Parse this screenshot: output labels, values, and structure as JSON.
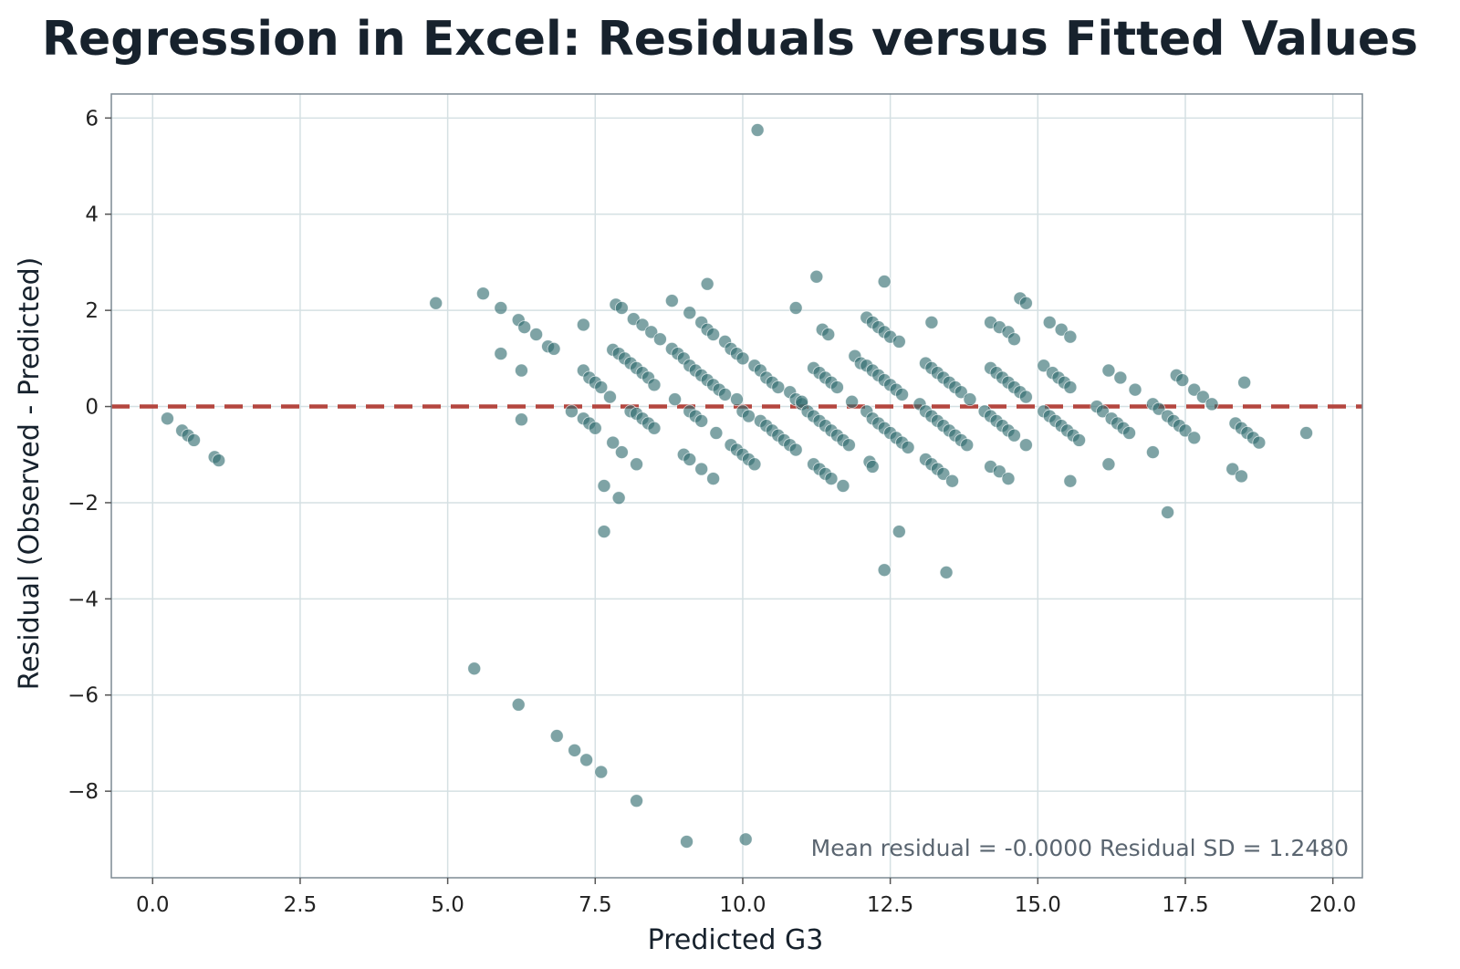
{
  "chart_data": {
    "type": "scatter",
    "title": "Regression in Excel: Residuals versus Fitted Values",
    "xlabel": "Predicted G3",
    "ylabel": "Residual (Observed - Predicted)",
    "xlim": [
      -0.7,
      20.5
    ],
    "ylim": [
      -9.8,
      6.5
    ],
    "xticks": [
      0,
      2.5,
      5,
      7.5,
      10,
      12.5,
      15,
      17.5,
      20
    ],
    "xtick_labels": [
      "0.0",
      "2.5",
      "5.0",
      "7.5",
      "10.0",
      "12.5",
      "15.0",
      "17.5",
      "20.0"
    ],
    "yticks": [
      -8,
      -6,
      -4,
      -2,
      0,
      2,
      4,
      6
    ],
    "ytick_labels": [
      "−8",
      "−6",
      "−4",
      "−2",
      "0",
      "2",
      "4",
      "6"
    ],
    "grid": true,
    "reference_line": {
      "y": 0,
      "style": "dashed",
      "color": "#b4463f"
    },
    "annotation": "Mean residual = -0.0000   Residual SD = 1.2480",
    "point_color": "#2e6b6e",
    "points": [
      [
        0.25,
        -0.25
      ],
      [
        0.5,
        -0.5
      ],
      [
        0.6,
        -0.6
      ],
      [
        0.7,
        -0.7
      ],
      [
        1.05,
        -1.05
      ],
      [
        1.12,
        -1.12
      ],
      [
        4.8,
        2.15
      ],
      [
        5.6,
        2.35
      ],
      [
        5.9,
        2.05
      ],
      [
        5.9,
        1.1
      ],
      [
        6.2,
        1.8
      ],
      [
        6.3,
        1.65
      ],
      [
        6.5,
        1.5
      ],
      [
        6.7,
        1.25
      ],
      [
        6.8,
        1.2
      ],
      [
        6.25,
        0.75
      ],
      [
        6.25,
        -0.27
      ],
      [
        7.3,
        1.7
      ],
      [
        7.3,
        0.75
      ],
      [
        7.4,
        0.6
      ],
      [
        7.5,
        0.5
      ],
      [
        7.6,
        0.4
      ],
      [
        7.75,
        0.2
      ],
      [
        7.1,
        -0.1
      ],
      [
        7.3,
        -0.25
      ],
      [
        7.4,
        -0.35
      ],
      [
        7.5,
        -0.45
      ],
      [
        7.8,
        -0.75
      ],
      [
        7.95,
        -0.95
      ],
      [
        8.2,
        -1.2
      ],
      [
        7.65,
        -1.65
      ],
      [
        7.9,
        -1.9
      ],
      [
        7.65,
        -2.6
      ],
      [
        7.85,
        2.12
      ],
      [
        7.95,
        2.05
      ],
      [
        8.15,
        1.82
      ],
      [
        8.3,
        1.7
      ],
      [
        8.45,
        1.55
      ],
      [
        8.6,
        1.4
      ],
      [
        8.8,
        1.2
      ],
      [
        8.8,
        2.2
      ],
      [
        7.8,
        1.18
      ],
      [
        7.9,
        1.1
      ],
      [
        8.0,
        1.0
      ],
      [
        8.1,
        0.9
      ],
      [
        8.2,
        0.8
      ],
      [
        8.3,
        0.7
      ],
      [
        8.4,
        0.6
      ],
      [
        8.5,
        0.45
      ],
      [
        8.1,
        -0.1
      ],
      [
        8.2,
        -0.15
      ],
      [
        8.3,
        -0.25
      ],
      [
        8.4,
        -0.35
      ],
      [
        8.5,
        -0.45
      ],
      [
        8.85,
        0.15
      ],
      [
        8.9,
        1.1
      ],
      [
        9.0,
        1.0
      ],
      [
        9.1,
        0.85
      ],
      [
        9.2,
        0.75
      ],
      [
        9.3,
        0.65
      ],
      [
        9.4,
        0.55
      ],
      [
        9.5,
        0.45
      ],
      [
        9.6,
        0.35
      ],
      [
        9.7,
        0.25
      ],
      [
        9.9,
        0.15
      ],
      [
        9.1,
        1.95
      ],
      [
        9.3,
        1.75
      ],
      [
        9.4,
        1.6
      ],
      [
        9.5,
        1.5
      ],
      [
        9.7,
        1.35
      ],
      [
        9.8,
        1.2
      ],
      [
        9.9,
        1.1
      ],
      [
        10.0,
        1.0
      ],
      [
        10.2,
        0.85
      ],
      [
        10.3,
        0.75
      ],
      [
        10.4,
        0.6
      ],
      [
        10.5,
        0.5
      ],
      [
        10.6,
        0.4
      ],
      [
        10.8,
        0.3
      ],
      [
        10.9,
        0.15
      ],
      [
        11.0,
        0.05
      ],
      [
        9.1,
        -0.1
      ],
      [
        9.2,
        -0.2
      ],
      [
        9.3,
        -0.3
      ],
      [
        9.55,
        -0.55
      ],
      [
        9.0,
        -1.0
      ],
      [
        9.1,
        -1.1
      ],
      [
        9.3,
        -1.3
      ],
      [
        9.5,
        -1.5
      ],
      [
        9.4,
        2.55
      ],
      [
        10.0,
        -0.1
      ],
      [
        10.1,
        -0.2
      ],
      [
        10.3,
        -0.3
      ],
      [
        10.4,
        -0.4
      ],
      [
        10.5,
        -0.5
      ],
      [
        10.6,
        -0.6
      ],
      [
        10.7,
        -0.7
      ],
      [
        10.8,
        -0.8
      ],
      [
        10.9,
        -0.9
      ],
      [
        9.8,
        -0.8
      ],
      [
        9.9,
        -0.9
      ],
      [
        10.0,
        -1.0
      ],
      [
        10.1,
        -1.1
      ],
      [
        10.2,
        -1.2
      ],
      [
        10.25,
        5.75
      ],
      [
        10.9,
        2.05
      ],
      [
        11.25,
        2.7
      ],
      [
        11.35,
        1.6
      ],
      [
        11.45,
        1.5
      ],
      [
        11.2,
        0.8
      ],
      [
        11.3,
        0.7
      ],
      [
        11.4,
        0.6
      ],
      [
        11.5,
        0.5
      ],
      [
        11.6,
        0.4
      ],
      [
        11.0,
        0.1
      ],
      [
        11.1,
        -0.1
      ],
      [
        11.2,
        -0.2
      ],
      [
        11.3,
        -0.3
      ],
      [
        11.4,
        -0.4
      ],
      [
        11.5,
        -0.5
      ],
      [
        11.6,
        -0.6
      ],
      [
        11.7,
        -0.7
      ],
      [
        11.8,
        -0.8
      ],
      [
        11.2,
        -1.2
      ],
      [
        11.3,
        -1.3
      ],
      [
        11.4,
        -1.4
      ],
      [
        11.5,
        -1.5
      ],
      [
        11.7,
        -1.65
      ],
      [
        11.85,
        0.1
      ],
      [
        11.9,
        1.05
      ],
      [
        12.1,
        1.85
      ],
      [
        12.2,
        1.75
      ],
      [
        12.3,
        1.65
      ],
      [
        12.4,
        1.55
      ],
      [
        12.5,
        1.45
      ],
      [
        12.65,
        1.35
      ],
      [
        12.0,
        0.9
      ],
      [
        12.1,
        0.85
      ],
      [
        12.2,
        0.75
      ],
      [
        12.3,
        0.65
      ],
      [
        12.4,
        0.55
      ],
      [
        12.5,
        0.45
      ],
      [
        12.6,
        0.35
      ],
      [
        12.7,
        0.25
      ],
      [
        12.1,
        -0.1
      ],
      [
        12.2,
        -0.25
      ],
      [
        12.3,
        -0.35
      ],
      [
        12.4,
        -0.45
      ],
      [
        12.5,
        -0.55
      ],
      [
        12.6,
        -0.65
      ],
      [
        12.7,
        -0.75
      ],
      [
        12.8,
        -0.85
      ],
      [
        12.15,
        -1.15
      ],
      [
        12.2,
        -1.25
      ],
      [
        12.4,
        2.6
      ],
      [
        12.65,
        -2.6
      ],
      [
        12.4,
        -3.4
      ],
      [
        13.0,
        0.05
      ],
      [
        13.1,
        0.9
      ],
      [
        13.2,
        0.8
      ],
      [
        13.3,
        0.7
      ],
      [
        13.4,
        0.6
      ],
      [
        13.5,
        0.5
      ],
      [
        13.6,
        0.4
      ],
      [
        13.7,
        0.3
      ],
      [
        13.2,
        1.75
      ],
      [
        13.1,
        -0.1
      ],
      [
        13.2,
        -0.2
      ],
      [
        13.3,
        -0.3
      ],
      [
        13.4,
        -0.4
      ],
      [
        13.5,
        -0.5
      ],
      [
        13.6,
        -0.6
      ],
      [
        13.7,
        -0.7
      ],
      [
        13.8,
        -0.8
      ],
      [
        13.1,
        -1.1
      ],
      [
        13.2,
        -1.2
      ],
      [
        13.3,
        -1.3
      ],
      [
        13.4,
        -1.4
      ],
      [
        13.55,
        -1.55
      ],
      [
        13.45,
        -3.45
      ],
      [
        13.85,
        0.15
      ],
      [
        14.1,
        -0.1
      ],
      [
        14.2,
        -0.2
      ],
      [
        14.3,
        -0.3
      ],
      [
        14.4,
        -0.4
      ],
      [
        14.5,
        -0.5
      ],
      [
        14.6,
        -0.6
      ],
      [
        14.2,
        0.8
      ],
      [
        14.3,
        0.7
      ],
      [
        14.4,
        0.6
      ],
      [
        14.5,
        0.5
      ],
      [
        14.6,
        0.4
      ],
      [
        14.7,
        0.3
      ],
      [
        14.8,
        0.2
      ],
      [
        14.2,
        1.75
      ],
      [
        14.35,
        1.65
      ],
      [
        14.5,
        1.55
      ],
      [
        14.6,
        1.4
      ],
      [
        14.7,
        2.25
      ],
      [
        14.8,
        2.15
      ],
      [
        14.8,
        -0.8
      ],
      [
        14.2,
        -1.25
      ],
      [
        14.35,
        -1.35
      ],
      [
        14.5,
        -1.5
      ],
      [
        15.1,
        0.85
      ],
      [
        15.25,
        0.7
      ],
      [
        15.35,
        0.6
      ],
      [
        15.45,
        0.5
      ],
      [
        15.55,
        0.4
      ],
      [
        15.2,
        1.75
      ],
      [
        15.4,
        1.6
      ],
      [
        15.55,
        1.45
      ],
      [
        15.1,
        -0.1
      ],
      [
        15.2,
        -0.2
      ],
      [
        15.3,
        -0.3
      ],
      [
        15.4,
        -0.4
      ],
      [
        15.5,
        -0.5
      ],
      [
        15.6,
        -0.6
      ],
      [
        15.7,
        -0.7
      ],
      [
        15.55,
        -1.55
      ],
      [
        16.0,
        0.0
      ],
      [
        16.1,
        -0.1
      ],
      [
        16.25,
        -0.25
      ],
      [
        16.35,
        -0.35
      ],
      [
        16.45,
        -0.45
      ],
      [
        16.55,
        -0.55
      ],
      [
        16.2,
        0.75
      ],
      [
        16.4,
        0.6
      ],
      [
        16.65,
        0.35
      ],
      [
        16.2,
        -1.2
      ],
      [
        16.95,
        0.05
      ],
      [
        17.05,
        -0.05
      ],
      [
        17.2,
        -0.2
      ],
      [
        17.3,
        -0.3
      ],
      [
        17.4,
        -0.4
      ],
      [
        17.5,
        -0.5
      ],
      [
        17.65,
        -0.65
      ],
      [
        17.35,
        0.65
      ],
      [
        17.45,
        0.55
      ],
      [
        17.65,
        0.35
      ],
      [
        17.8,
        0.2
      ],
      [
        17.95,
        0.05
      ],
      [
        16.95,
        -0.95
      ],
      [
        17.2,
        -2.2
      ],
      [
        18.35,
        -0.35
      ],
      [
        18.45,
        -0.45
      ],
      [
        18.55,
        -0.55
      ],
      [
        18.65,
        -0.65
      ],
      [
        18.75,
        -0.75
      ],
      [
        18.3,
        -1.3
      ],
      [
        18.45,
        -1.45
      ],
      [
        18.5,
        0.5
      ],
      [
        19.55,
        -0.55
      ],
      [
        5.45,
        -5.45
      ],
      [
        6.2,
        -6.2
      ],
      [
        6.85,
        -6.85
      ],
      [
        7.15,
        -7.15
      ],
      [
        7.35,
        -7.35
      ],
      [
        7.6,
        -7.6
      ],
      [
        8.2,
        -8.2
      ],
      [
        9.05,
        -9.05
      ],
      [
        10.05,
        -9.0
      ]
    ]
  }
}
